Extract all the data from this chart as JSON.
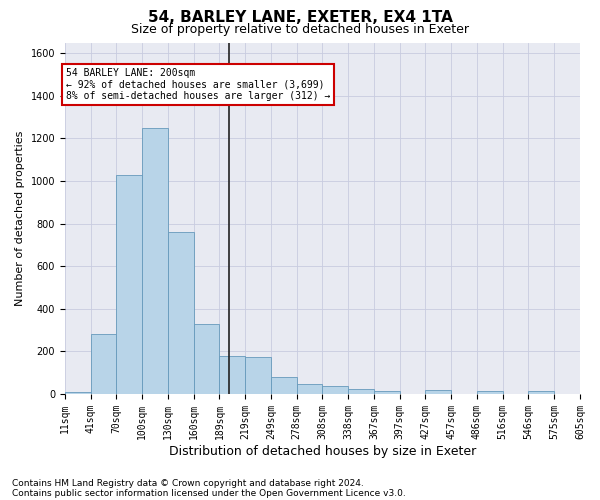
{
  "title": "54, BARLEY LANE, EXETER, EX4 1TA",
  "subtitle": "Size of property relative to detached houses in Exeter",
  "xlabel": "Distribution of detached houses by size in Exeter",
  "ylabel": "Number of detached properties",
  "footnote1": "Contains HM Land Registry data © Crown copyright and database right 2024.",
  "footnote2": "Contains public sector information licensed under the Open Government Licence v3.0.",
  "bin_labels": [
    "11sqm",
    "41sqm",
    "70sqm",
    "100sqm",
    "130sqm",
    "160sqm",
    "189sqm",
    "219sqm",
    "249sqm",
    "278sqm",
    "308sqm",
    "338sqm",
    "367sqm",
    "397sqm",
    "427sqm",
    "457sqm",
    "486sqm",
    "516sqm",
    "546sqm",
    "575sqm",
    "605sqm"
  ],
  "bar_heights": [
    10,
    280,
    1030,
    1250,
    760,
    330,
    180,
    175,
    80,
    45,
    38,
    25,
    12,
    0,
    18,
    0,
    12,
    0,
    12,
    0
  ],
  "bar_color": "#b8d4e8",
  "bar_edge_color": "#6699bb",
  "ylim": [
    0,
    1650
  ],
  "yticks": [
    0,
    200,
    400,
    600,
    800,
    1000,
    1200,
    1400,
    1600
  ],
  "grid_color": "#c8cce0",
  "bg_color": "#e8eaf2",
  "vline_x": 7.0,
  "vline_color": "#222222",
  "box_text_line1": "54 BARLEY LANE: 200sqm",
  "box_text_line2": "← 92% of detached houses are smaller (3,699)",
  "box_text_line3": "8% of semi-detached houses are larger (312) →",
  "box_facecolor": "#ffffff",
  "box_edgecolor": "#cc0000",
  "title_fontsize": 11,
  "subtitle_fontsize": 9,
  "xlabel_fontsize": 9,
  "ylabel_fontsize": 8,
  "tick_fontsize": 7,
  "annot_fontsize": 7,
  "footnote_fontsize": 6.5
}
